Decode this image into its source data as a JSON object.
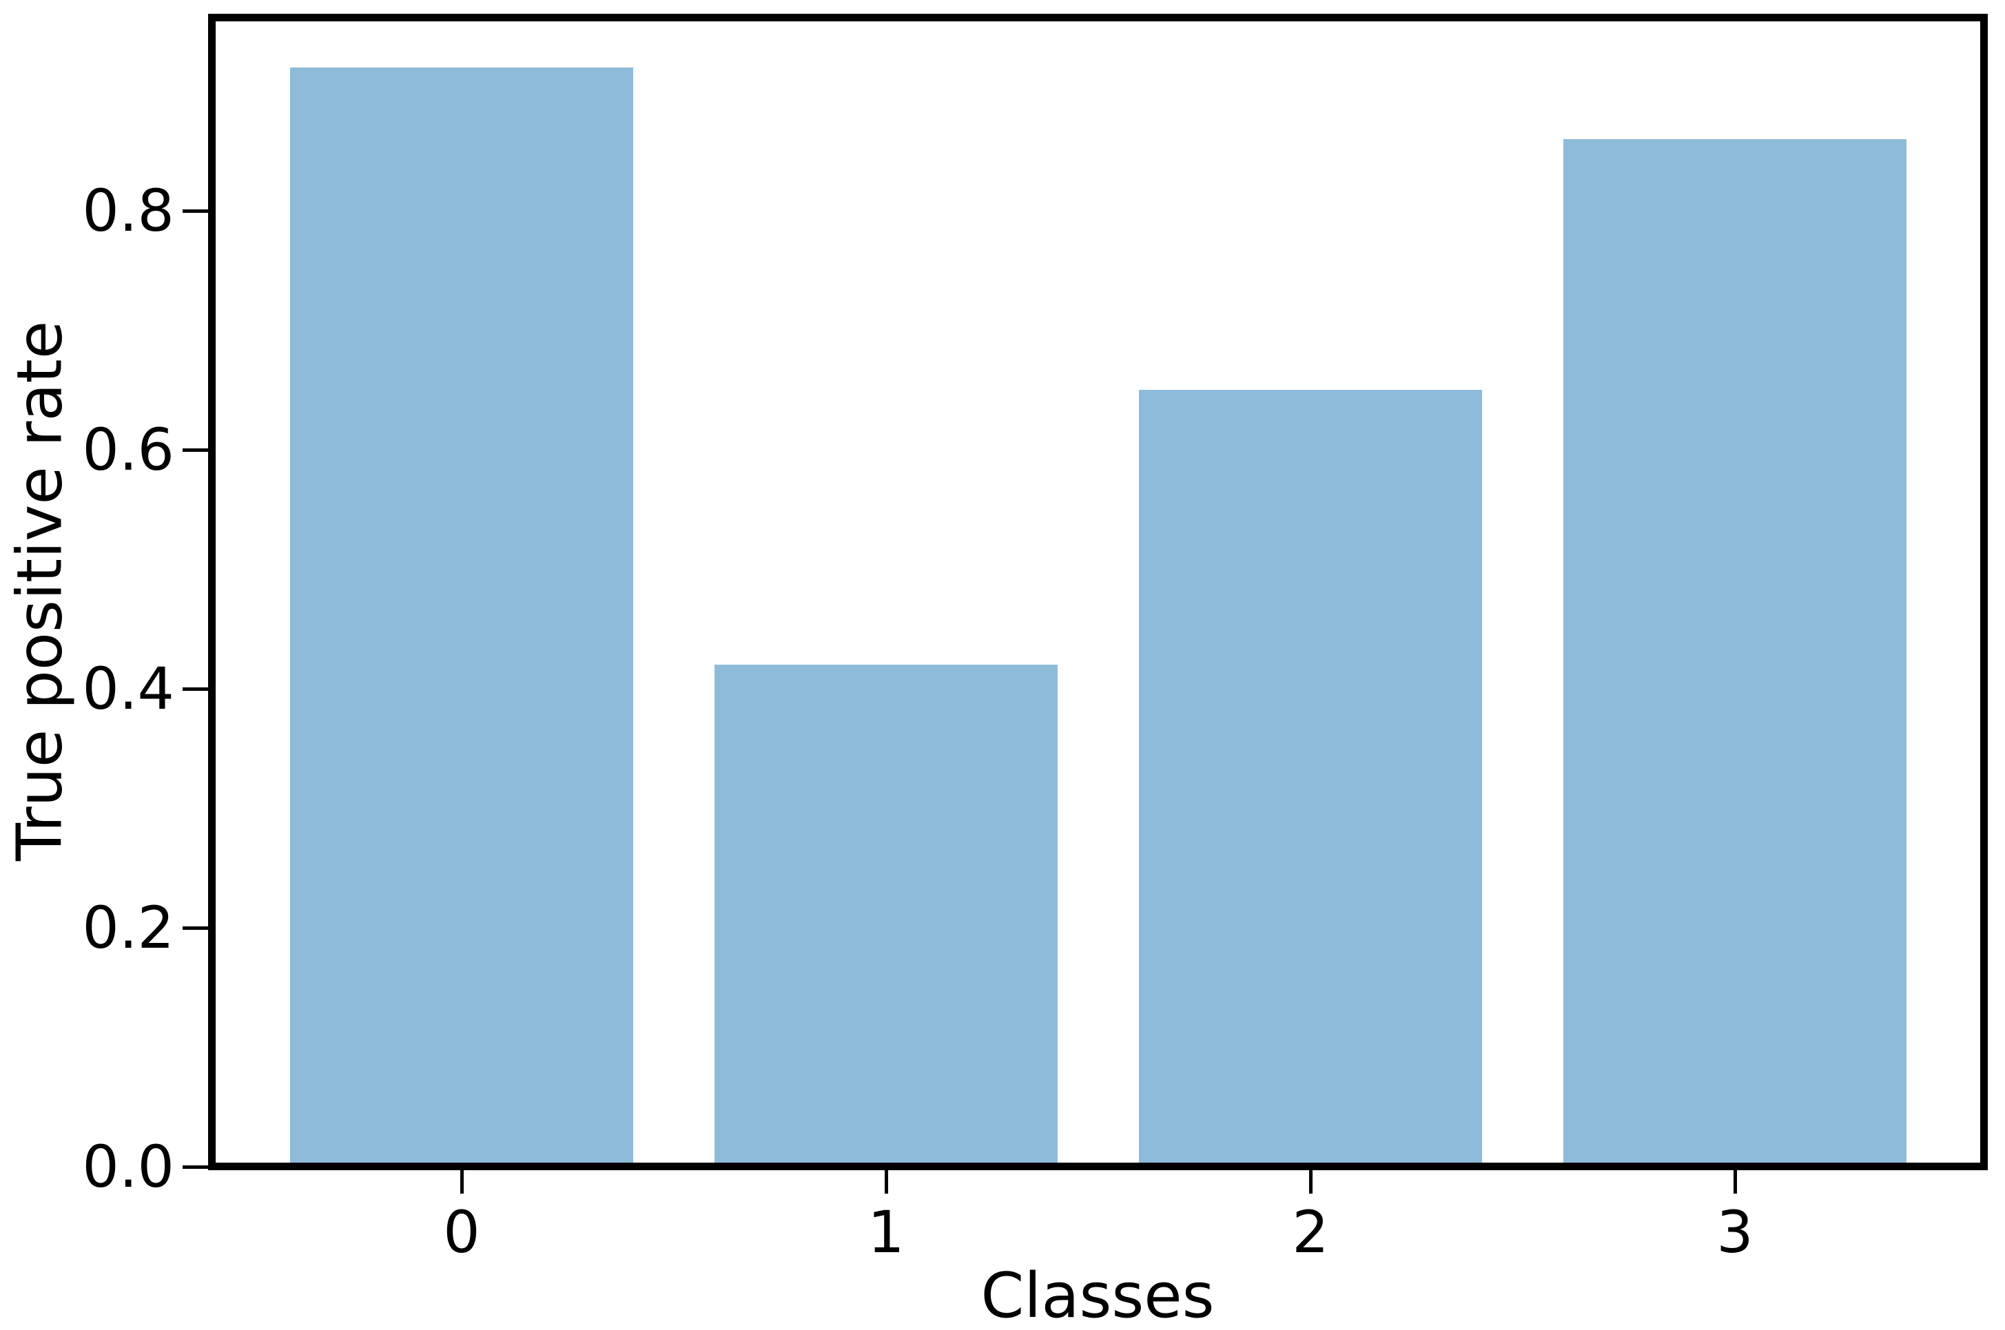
{
  "figure": {
    "background_color": "#ffffff",
    "text_color": "#000000",
    "axis_color": "#000000"
  },
  "chart_data": {
    "type": "bar",
    "title": "",
    "xlabel": "Classes",
    "ylabel": "True positive rate",
    "categories": [
      "0",
      "1",
      "2",
      "3"
    ],
    "values": [
      0.92,
      0.42,
      0.65,
      0.86
    ],
    "bar_color": "#8fbbda",
    "bar_width_fraction": 0.8,
    "yticks": {
      "values": [
        0.0,
        0.2,
        0.4,
        0.6,
        0.8
      ],
      "labels": [
        "0.0",
        "0.2",
        "0.4",
        "0.6",
        "0.8"
      ]
    },
    "ylim": [
      0,
      0.96
    ],
    "grid": false,
    "legend": null
  }
}
